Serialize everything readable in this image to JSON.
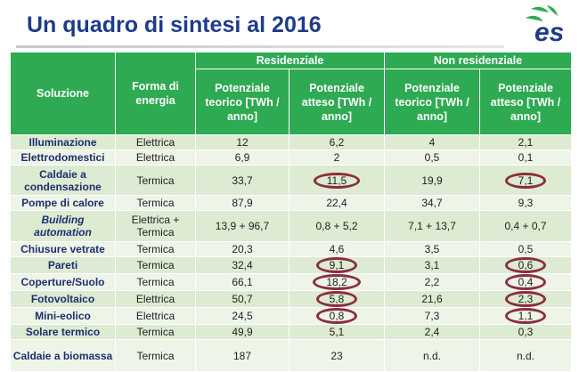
{
  "title": "Un quadro di sintesi al 2016",
  "logo": {
    "text": "es",
    "colors": {
      "green": "#2eaa52",
      "blue": "#1f3b8a"
    }
  },
  "accent_color": "#2eaa52",
  "circle_color": "#8c2d3f",
  "table": {
    "headers": {
      "soluzione": "Soluzione",
      "forma": "Forma di energia",
      "residenziale": "Residenziale",
      "non_residenziale": "Non residenziale",
      "pot_teorico": "Potenziale teorico [TWh / anno]",
      "pot_atteso": "Potenziale atteso [TWh / anno]"
    },
    "rows": [
      {
        "sol": "Illuminazione",
        "forma": "Elettrica",
        "r_teo": "12",
        "r_att": "6,2",
        "n_teo": "4",
        "n_att": "2,1"
      },
      {
        "sol": "Elettrodomestici",
        "forma": "Elettrica",
        "r_teo": "6,9",
        "r_att": "2",
        "n_teo": "0,5",
        "n_att": "0,1"
      },
      {
        "sol": "Caldaie a condensazione",
        "forma": "Termica",
        "r_teo": "33,7",
        "r_att": "11,5",
        "n_teo": "19,9",
        "n_att": "7,1"
      },
      {
        "sol": "Pompe di calore",
        "forma": "Termica",
        "r_teo": "87,9",
        "r_att": "22,4",
        "n_teo": "34,7",
        "n_att": "9,3"
      },
      {
        "sol": "Building automation",
        "forma": "Elettrica + Termica",
        "r_teo": "13,9 + 96,7",
        "r_att": "0,8 + 5,2",
        "n_teo": "7,1 + 13,7",
        "n_att": "0,4 + 0,7"
      },
      {
        "sol": "Chiusure vetrate",
        "forma": "Termica",
        "r_teo": "20,3",
        "r_att": "4,6",
        "n_teo": "3,5",
        "n_att": "0,5"
      },
      {
        "sol": "Pareti",
        "forma": "Termica",
        "r_teo": "32,4",
        "r_att": "9,1",
        "n_teo": "3,1",
        "n_att": "0,6"
      },
      {
        "sol": "Coperture/Suolo",
        "forma": "Termica",
        "r_teo": "66,1",
        "r_att": "18,2",
        "n_teo": "2,2",
        "n_att": "0,4"
      },
      {
        "sol": "Fotovoltaico",
        "forma": "Elettrica",
        "r_teo": "50,7",
        "r_att": "5,8",
        "n_teo": "21,6",
        "n_att": "2,3"
      },
      {
        "sol": "Mini-eolico",
        "forma": "Elettrica",
        "r_teo": "24,5",
        "r_att": "0,8",
        "n_teo": "7,3",
        "n_att": "1,1"
      },
      {
        "sol": "Solare termico",
        "forma": "Termica",
        "r_teo": "49,9",
        "r_att": "5,1",
        "n_teo": "2,4",
        "n_att": "0,3"
      },
      {
        "sol": "Caldaie a biomassa",
        "forma": "Termica",
        "r_teo": "187",
        "r_att": "23",
        "n_teo": "n.d.",
        "n_att": "n.d."
      }
    ]
  }
}
